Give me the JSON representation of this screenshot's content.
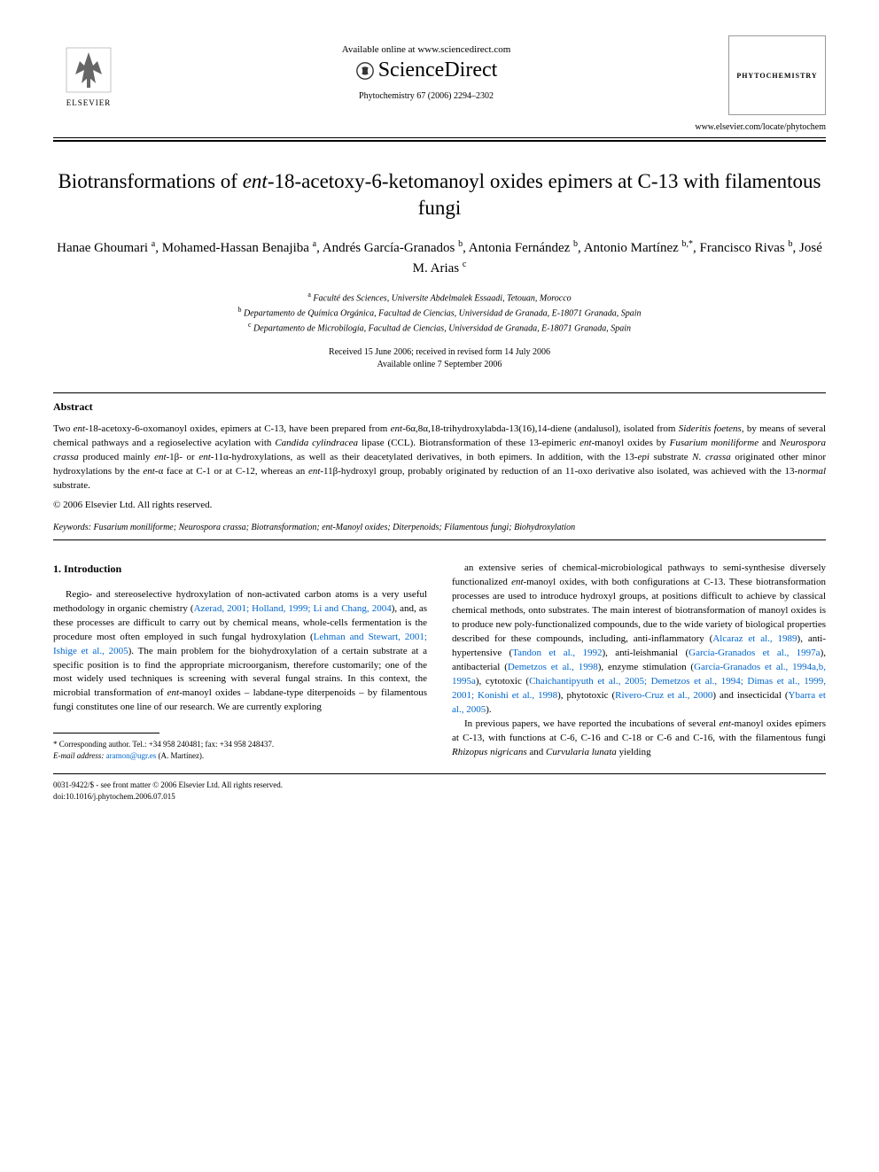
{
  "header": {
    "publisher_name": "ELSEVIER",
    "available_online": "Available online at www.sciencedirect.com",
    "platform": "ScienceDirect",
    "citation": "Phytochemistry 67 (2006) 2294–2302",
    "journal_name": "PHYTOCHEMISTRY",
    "journal_url": "www.elsevier.com/locate/phytochem"
  },
  "article": {
    "title_html": "Biotransformations of <em>ent</em>-18-acetoxy-6-ketomanoyl oxides epimers at C-13 with filamentous fungi",
    "authors_html": "Hanae Ghoumari <sup>a</sup>, Mohamed-Hassan Benajiba <sup>a</sup>, Andrés García-Granados <sup>b</sup>, Antonia Fernández <sup>b</sup>, Antonio Martínez <sup>b,*</sup>, Francisco Rivas <sup>b</sup>, José M. Arias <sup>c</sup>",
    "affiliations": [
      "<sup>a</sup> Faculté des Sciences, Universite Abdelmalek Essaadi, Tetouan, Morocco",
      "<sup>b</sup> Departamento de Química Orgánica, Facultad de Ciencias, Universidad de Granada, E-18071 Granada, Spain",
      "<sup>c</sup> Departamento de Microbilogía, Facultad de Ciencias, Universidad de Granada, E-18071 Granada, Spain"
    ],
    "dates": [
      "Received 15 June 2006; received in revised form 14 July 2006",
      "Available online 7 September 2006"
    ]
  },
  "abstract": {
    "heading": "Abstract",
    "text_html": "Two <em>ent</em>-18-acetoxy-6-oxomanoyl oxides, epimers at C-13, have been prepared from <em>ent</em>-6α,8α,18-trihydroxylabda-13(16),14-diene (andalusol), isolated from <em>Sideritis foetens</em>, by means of several chemical pathways and a regioselective acylation with <em>Candida cylindracea</em> lipase (CCL). Biotransformation of these 13-epimeric <em>ent</em>-manoyl oxides by <em>Fusarium moniliforme</em> and <em>Neurospora crassa</em> produced mainly <em>ent</em>-1β- or <em>ent</em>-11α-hydroxylations, as well as their deacetylated derivatives, in both epimers. In addition, with the 13-<em>epi</em> substrate <em>N. crassa</em> originated other minor hydroxylations by the <em>ent</em>-α face at C-1 or at C-12, whereas an <em>ent</em>-11β-hydroxyl group, probably originated by reduction of an 11-oxo derivative also isolated, was achieved with the 13-<em>normal</em> substrate.",
    "copyright": "© 2006 Elsevier Ltd. All rights reserved."
  },
  "keywords": {
    "label": "Keywords:",
    "text_html": "<em>Fusarium moniliforme</em>; <em>Neurospora crassa</em>; Biotransformation; <em>ent</em>-Manoyl oxides; Diterpenoids; Filamentous fungi; Biohydroxylation"
  },
  "introduction": {
    "heading": "1. Introduction",
    "col1_html": "Regio- and stereoselective hydroxylation of non-activated carbon atoms is a very useful methodology in organic chemistry (<a href='#'>Azerad, 2001; Holland, 1999; Li and Chang, 2004</a>), and, as these processes are difficult to carry out by chemical means, whole-cells fermentation is the procedure most often employed in such fungal hydroxylation (<a href='#'>Lehman and Stewart, 2001; Ishige et al., 2005</a>). The main problem for the biohydroxylation of a certain substrate at a specific position is to find the appropriate microorganism, therefore customarily; one of the most widely used techniques is screening with several fungal strains. In this context, the microbial transformation of <em>ent</em>-manoyl oxides – labdane-type diterpenoids – by filamentous fungi constitutes one line of our research. We are currently exploring",
    "col2_p1_html": "an extensive series of chemical-microbiological pathways to semi-synthesise diversely functionalized <em>ent</em>-manoyl oxides, with both configurations at C-13. These biotransformation processes are used to introduce hydroxyl groups, at positions difficult to achieve by classical chemical methods, onto substrates. The main interest of biotransformation of manoyl oxides is to produce new poly-functionalized compounds, due to the wide variety of biological properties described for these compounds, including, anti-inflammatory (<a href='#'>Alcaraz et al., 1989</a>), anti-hypertensive (<a href='#'>Tandon et al., 1992</a>), anti-leishmanial (<a href='#'>García-Granados et al., 1997a</a>), antibacterial (<a href='#'>Demetzos et al., 1998</a>), enzyme stimulation (<a href='#'>García-Granados et al., 1994a,b, 1995a</a>), cytotoxic (<a href='#'>Chaichantipyuth et al., 2005; Demetzos et al., 1994; Dimas et al., 1999, 2001; Konishi et al., 1998</a>), phytotoxic (<a href='#'>Rivero-Cruz et al., 2000</a>) and insecticidal (<a href='#'>Ybarra et al., 2005</a>).",
    "col2_p2_html": "In previous papers, we have reported the incubations of several <em>ent</em>-manoyl oxides epimers at C-13, with functions at C-6, C-16 and C-18 or C-6 and C-16, with the filamentous fungi <em>Rhizopus nigricans</em> and <em>Curvularia lunata</em> yielding"
  },
  "footnote": {
    "corresponding": "* Corresponding author. Tel.: +34 958 240481; fax: +34 958 248437.",
    "email_label": "E-mail address:",
    "email": "aramon@ugr.es",
    "email_name": "(A. Martínez)."
  },
  "footer": {
    "line1": "0031-9422/$ - see front matter © 2006 Elsevier Ltd. All rights reserved.",
    "line2": "doi:10.1016/j.phytochem.2006.07.015"
  },
  "colors": {
    "link": "#0066cc",
    "text": "#000000",
    "background": "#ffffff",
    "rule": "#000000"
  }
}
